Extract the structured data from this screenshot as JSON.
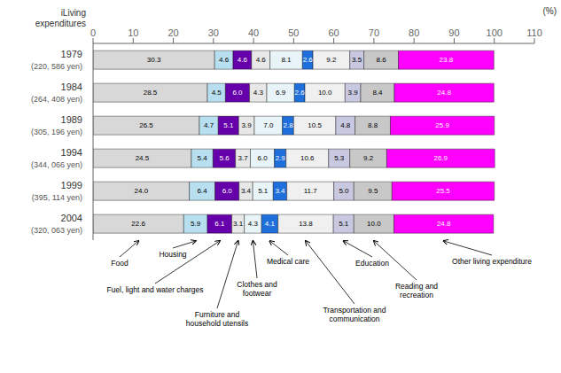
{
  "chart_data": {
    "type": "bar",
    "orientation": "horizontal",
    "stacked": true,
    "data_labels": true,
    "xlabel": "(%)",
    "ylabel": "iLiving\nexpenditures",
    "categories": [
      "1979\n(220, 586 yen)",
      "1984\n(264, 408 yen)",
      "1989\n(305, 196 yen)",
      "1994\n(344, 066 yen)",
      "1999\n(395, 114 yen)",
      "2004\n(320, 063 yen)"
    ],
    "series": [
      {
        "name": "Food",
        "color": "#d8d8d8",
        "values": [
          30.3,
          28.5,
          26.5,
          24.5,
          24.0,
          22.6
        ],
        "value_labels": [
          "30.3",
          "28.5",
          "26.5",
          "24.5",
          "24.0",
          "22.6"
        ]
      },
      {
        "name": "Housing",
        "color": "#b8dff0",
        "values": [
          4.6,
          4.5,
          4.7,
          5.4,
          6.4,
          5.9
        ],
        "value_labels": [
          "4.6",
          "4.5",
          "4.7",
          "5.4",
          "6.4",
          "5.9"
        ]
      },
      {
        "name": "Fuel, light and water charges",
        "color": "#6600aa",
        "values": [
          4.6,
          6.0,
          5.1,
          5.6,
          6.0,
          6.1
        ],
        "value_labels": [
          "4.6",
          "6.0",
          "5.1",
          "5.6",
          "6.0",
          "6.1"
        ]
      },
      {
        "name": "Furniture and\nhousehold utensils",
        "color": "#e8e8e8",
        "values": [
          4.6,
          4.3,
          3.9,
          3.7,
          3.4,
          3.1
        ],
        "value_labels": [
          "4.6",
          "4.3",
          "3.9",
          "3.7",
          "3.4",
          "3.1"
        ]
      },
      {
        "name": "Clothes and\nfootwear",
        "color": "#e8f4f8",
        "values": [
          8.1,
          6.9,
          7.0,
          6.0,
          5.1,
          4.3
        ],
        "value_labels": [
          "8.1",
          "6.9",
          "7.0",
          "6.0",
          "5.1",
          "4.3"
        ]
      },
      {
        "name": "Medical care",
        "color": "#1e6fdc",
        "values": [
          2.6,
          2.6,
          2.8,
          2.9,
          3.4,
          4.1
        ],
        "value_labels": [
          "2.6",
          "2.6",
          "2.8",
          "2.9",
          "3.4",
          "4.1"
        ]
      },
      {
        "name": "Transportation and\ncommunication",
        "color": "#f0f0f0",
        "values": [
          9.2,
          10.0,
          10.5,
          10.6,
          11.7,
          13.8
        ],
        "value_labels": [
          "9.2",
          "10.0",
          "10.5",
          "10.6",
          "11.7",
          "13.8"
        ]
      },
      {
        "name": "Education",
        "color": "#c8c8e0",
        "values": [
          3.5,
          3.9,
          4.8,
          5.3,
          5.0,
          5.1
        ],
        "value_labels": [
          "3.5",
          "3.9",
          "4.8",
          "5.3",
          "5.0",
          "5.1"
        ]
      },
      {
        "name": "Reading and\nrecreation",
        "color": "#c8c8c8",
        "values": [
          8.6,
          8.4,
          8.8,
          9.2,
          9.5,
          10.0
        ],
        "value_labels": [
          "8.6",
          "8.4",
          "8.8",
          "9.2",
          "9.5",
          "10.0"
        ]
      },
      {
        "name": "Other living expenditure",
        "color": "#ff00ff",
        "values": [
          23.8,
          24.8,
          25.9,
          26.9,
          25.5,
          24.8
        ],
        "value_labels": [
          "23.8",
          "24.8",
          "25.9",
          "26.9",
          "25.5",
          "24.8"
        ]
      }
    ],
    "xlim": [
      0,
      110
    ],
    "xticks": [
      0,
      10,
      20,
      30,
      40,
      50,
      60,
      70,
      80,
      90,
      100,
      110
    ]
  }
}
